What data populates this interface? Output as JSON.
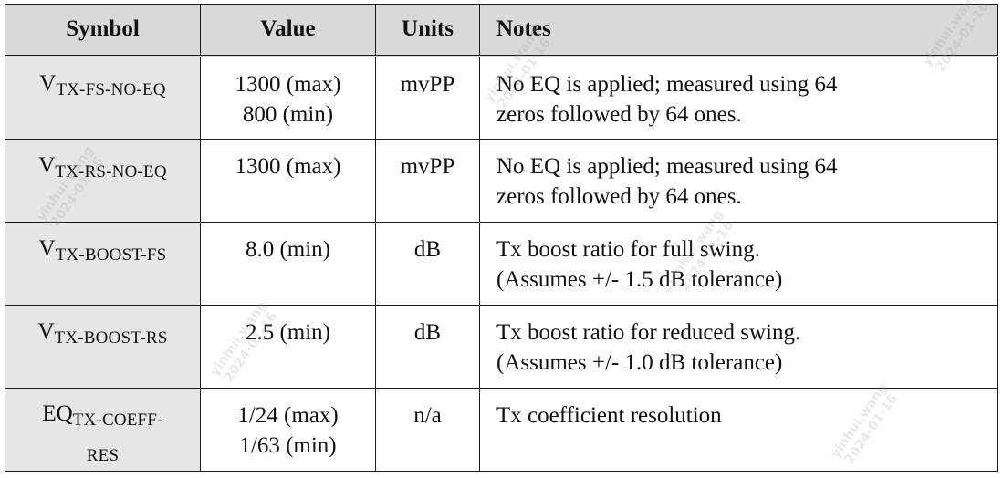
{
  "table": {
    "headers": [
      "Symbol",
      "Value",
      "Units",
      "Notes"
    ],
    "rows": [
      {
        "symbol_main": "V",
        "symbol_sub": "TX-FS-NO-EQ",
        "value_lines": [
          "1300 (max)",
          "800 (min)"
        ],
        "units": "mvPP",
        "notes_lines": [
          "No EQ is applied; measured using 64",
          "zeros followed by 64 ones."
        ]
      },
      {
        "symbol_main": "V",
        "symbol_sub": "TX-RS-NO-EQ",
        "value_lines": [
          "1300 (max)"
        ],
        "units": "mvPP",
        "notes_lines": [
          "No EQ is applied; measured using 64",
          "zeros followed by 64 ones."
        ]
      },
      {
        "symbol_main": "V",
        "symbol_sub": "TX-BOOST-FS",
        "value_lines": [
          "8.0 (min)"
        ],
        "units": "dB",
        "notes_lines": [
          "Tx boost ratio for full swing.",
          "(Assumes +/- 1.5 dB tolerance)"
        ]
      },
      {
        "symbol_main": "V",
        "symbol_sub": "TX-BOOST-RS",
        "value_lines": [
          "2.5 (min)"
        ],
        "units": "dB",
        "notes_lines": [
          "Tx boost ratio for reduced swing.",
          "(Assumes +/- 1.0 dB tolerance)"
        ]
      },
      {
        "symbol_main": "EQ",
        "symbol_sub": "TX-COEFF-",
        "symbol_sub2": "RES",
        "value_lines": [
          "1/24 (max)",
          "1/63 (min)"
        ],
        "units": "n/a",
        "notes_lines": [
          "Tx coefficient resolution"
        ]
      }
    ]
  },
  "watermark": {
    "name": "yinhui.wang",
    "date": "2024-01-16"
  }
}
